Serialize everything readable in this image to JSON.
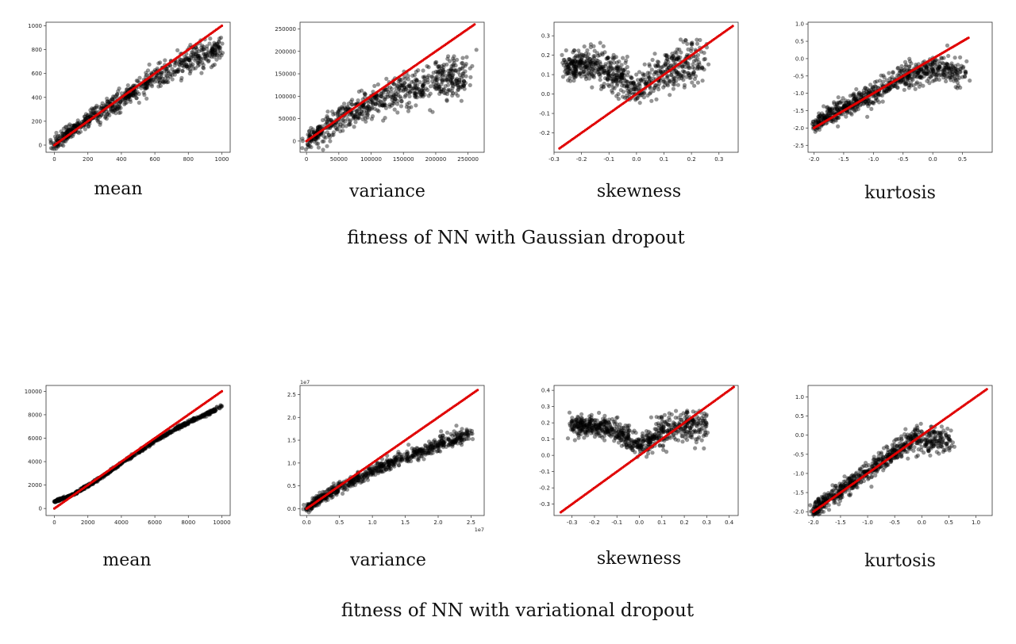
{
  "rows": [
    {
      "caption": "fitness of NN with Gaussian dropout"
    },
    {
      "caption": "fitness of NN with variational dropout"
    }
  ],
  "colors": {
    "points": "#000000",
    "identity_line": "#e00000",
    "axes": "#333333"
  },
  "chart_data": [
    {
      "type": "scatter",
      "caption": "mean",
      "row": 0,
      "xlim": [
        -50,
        1050
      ],
      "ylim": [
        -60,
        1030
      ],
      "xticks": [
        0,
        200,
        400,
        600,
        800,
        1000
      ],
      "xtick_labels": [
        "0",
        "200",
        "400",
        "600",
        "800",
        "1000"
      ],
      "yticks": [
        0,
        200,
        400,
        600,
        800,
        1000
      ],
      "ytick_labels": [
        "0",
        "200",
        "400",
        "600",
        "800",
        "1000"
      ],
      "identity_range": [
        0,
        1000
      ],
      "cloud": [
        [
          0,
          0
        ],
        [
          100,
          120
        ],
        [
          200,
          210
        ],
        [
          300,
          295
        ],
        [
          400,
          385
        ],
        [
          500,
          470
        ],
        [
          600,
          560
        ],
        [
          700,
          640
        ],
        [
          800,
          710
        ],
        [
          900,
          760
        ],
        [
          1000,
          800
        ]
      ],
      "cloud_spread": 55
    },
    {
      "type": "scatter",
      "caption": "variance",
      "row": 0,
      "xlim": [
        -10000,
        275000
      ],
      "ylim": [
        -25000,
        265000
      ],
      "xticks": [
        0,
        50000,
        100000,
        150000,
        200000,
        250000
      ],
      "xtick_labels": [
        "0",
        "50000",
        "100000",
        "150000",
        "200000",
        "250000"
      ],
      "yticks": [
        0,
        50000,
        100000,
        150000,
        200000,
        250000
      ],
      "ytick_labels": [
        "0",
        "50000",
        "100000",
        "150000",
        "200000",
        "250000"
      ],
      "identity_range": [
        0,
        260000
      ],
      "cloud": [
        [
          0,
          0
        ],
        [
          25000,
          25000
        ],
        [
          50000,
          48000
        ],
        [
          75000,
          68000
        ],
        [
          100000,
          85000
        ],
        [
          125000,
          100000
        ],
        [
          150000,
          112000
        ],
        [
          175000,
          122000
        ],
        [
          200000,
          132000
        ],
        [
          225000,
          140000
        ],
        [
          250000,
          145000
        ]
      ],
      "cloud_spread": 22000
    },
    {
      "type": "scatter",
      "caption": "skewness",
      "row": 0,
      "xlim": [
        -0.3,
        0.37
      ],
      "ylim": [
        -0.3,
        0.37
      ],
      "xticks": [
        -0.3,
        -0.2,
        -0.1,
        0.0,
        0.1,
        0.2,
        0.3
      ],
      "xtick_labels": [
        "-0.3",
        "-0.2",
        "-0.1",
        "0.0",
        "0.1",
        "0.2",
        "0.3"
      ],
      "yticks": [
        -0.2,
        -0.1,
        0.0,
        0.1,
        0.2,
        0.3
      ],
      "ytick_labels": [
        "-0.2",
        "-0.1",
        "0.0",
        "0.1",
        "0.2",
        "0.3"
      ],
      "identity_range": [
        -0.28,
        0.35
      ],
      "cloud": [
        [
          -0.25,
          0.14
        ],
        [
          -0.2,
          0.15
        ],
        [
          -0.15,
          0.14
        ],
        [
          -0.1,
          0.12
        ],
        [
          -0.05,
          0.08
        ],
        [
          0.0,
          0.02
        ],
        [
          0.05,
          0.08
        ],
        [
          0.1,
          0.12
        ],
        [
          0.15,
          0.15
        ],
        [
          0.2,
          0.16
        ],
        [
          0.25,
          0.16
        ]
      ],
      "cloud_spread": 0.06
    },
    {
      "type": "scatter",
      "caption": "kurtosis",
      "row": 0,
      "xlim": [
        -2.1,
        1.0
      ],
      "ylim": [
        -2.7,
        1.05
      ],
      "xticks": [
        -2.0,
        -1.5,
        -1.0,
        -0.5,
        0.0,
        0.5
      ],
      "xtick_labels": [
        "-2.0",
        "-1.5",
        "-1.0",
        "-0.5",
        "0.0",
        "0.5"
      ],
      "yticks": [
        -2.5,
        -2.0,
        -1.5,
        -1.0,
        -0.5,
        0.0,
        0.5,
        1.0
      ],
      "ytick_labels": [
        "-2.5",
        "-2.0",
        "-1.5",
        "-1.0",
        "-0.5",
        "0.0",
        "0.5",
        "1.0"
      ],
      "identity_range": [
        -2.0,
        0.6
      ],
      "cloud": [
        [
          -2.0,
          -1.95
        ],
        [
          -1.8,
          -1.7
        ],
        [
          -1.5,
          -1.45
        ],
        [
          -1.2,
          -1.15
        ],
        [
          -1.0,
          -1.0
        ],
        [
          -0.8,
          -0.8
        ],
        [
          -0.5,
          -0.55
        ],
        [
          -0.3,
          -0.4
        ],
        [
          0.0,
          -0.3
        ],
        [
          0.3,
          -0.3
        ],
        [
          0.55,
          -0.35
        ]
      ],
      "cloud_spread": 0.22
    },
    {
      "type": "scatter",
      "caption": "mean",
      "row": 1,
      "xlim": [
        -500,
        10500
      ],
      "ylim": [
        -600,
        10500
      ],
      "xticks": [
        0,
        2000,
        4000,
        6000,
        8000,
        10000
      ],
      "xtick_labels": [
        "0",
        "2000",
        "4000",
        "6000",
        "8000",
        "10000"
      ],
      "yticks": [
        0,
        2000,
        4000,
        6000,
        8000,
        10000
      ],
      "ytick_labels": [
        "0",
        "2000",
        "4000",
        "6000",
        "8000",
        "10000"
      ],
      "identity_range": [
        0,
        10000
      ],
      "cloud": [
        [
          0,
          600
        ],
        [
          1000,
          1100
        ],
        [
          2000,
          1950
        ],
        [
          3000,
          2850
        ],
        [
          4000,
          3850
        ],
        [
          5000,
          4800
        ],
        [
          6000,
          5750
        ],
        [
          7000,
          6600
        ],
        [
          8000,
          7350
        ],
        [
          9000,
          8000
        ],
        [
          10000,
          8700
        ]
      ],
      "cloud_spread": 80
    },
    {
      "type": "scatter",
      "caption": "variance",
      "row": 1,
      "offset_label": "1e7",
      "xlim": [
        -0.1,
        2.7
      ],
      "ylim": [
        -0.15,
        2.7
      ],
      "xticks": [
        0.0,
        0.5,
        1.0,
        1.5,
        2.0,
        2.5
      ],
      "xtick_labels": [
        "0.0",
        "0.5",
        "1.0",
        "1.5",
        "2.0",
        "2.5"
      ],
      "yticks": [
        0.0,
        0.5,
        1.0,
        1.5,
        2.0,
        2.5
      ],
      "ytick_labels": [
        "0.0",
        "0.5",
        "1.0",
        "1.5",
        "2.0",
        "2.5"
      ],
      "identity_range": [
        0,
        2.6
      ],
      "cloud": [
        [
          0,
          0
        ],
        [
          0.25,
          0.25
        ],
        [
          0.5,
          0.45
        ],
        [
          0.75,
          0.65
        ],
        [
          1.0,
          0.82
        ],
        [
          1.25,
          0.98
        ],
        [
          1.5,
          1.12
        ],
        [
          1.75,
          1.27
        ],
        [
          2.0,
          1.4
        ],
        [
          2.25,
          1.52
        ],
        [
          2.5,
          1.65
        ]
      ],
      "cloud_spread": 0.09
    },
    {
      "type": "scatter",
      "caption": "skewness",
      "row": 1,
      "xlim": [
        -0.38,
        0.44
      ],
      "ylim": [
        -0.37,
        0.43
      ],
      "xticks": [
        -0.3,
        -0.2,
        -0.1,
        0.0,
        0.1,
        0.2,
        0.3,
        0.4
      ],
      "xtick_labels": [
        "-0.3",
        "-0.2",
        "-0.1",
        "0.0",
        "0.1",
        "0.2",
        "0.3",
        "0.4"
      ],
      "yticks": [
        -0.3,
        -0.2,
        -0.1,
        0.0,
        0.1,
        0.2,
        0.3,
        0.4
      ],
      "ytick_labels": [
        "-0.3",
        "-0.2",
        "-0.1",
        "0.0",
        "0.1",
        "0.2",
        "0.3",
        "0.4"
      ],
      "identity_range": [
        -0.35,
        0.42
      ],
      "cloud": [
        [
          -0.3,
          0.18
        ],
        [
          -0.2,
          0.18
        ],
        [
          -0.1,
          0.15
        ],
        [
          -0.05,
          0.1
        ],
        [
          0.0,
          0.04
        ],
        [
          0.05,
          0.1
        ],
        [
          0.1,
          0.15
        ],
        [
          0.2,
          0.18
        ],
        [
          0.3,
          0.18
        ]
      ],
      "cloud_spread": 0.05
    },
    {
      "type": "scatter",
      "caption": "kurtosis",
      "row": 1,
      "xlim": [
        -2.1,
        1.3
      ],
      "ylim": [
        -2.1,
        1.3
      ],
      "xticks": [
        -2.0,
        -1.5,
        -1.0,
        -0.5,
        0.0,
        0.5,
        1.0
      ],
      "xtick_labels": [
        "-2.0",
        "-1.5",
        "-1.0",
        "-0.5",
        "0.0",
        "0.5",
        "1.0"
      ],
      "yticks": [
        -2.0,
        -1.5,
        -1.0,
        -0.5,
        0.0,
        0.5,
        1.0
      ],
      "ytick_labels": [
        "-2.0",
        "-1.5",
        "-1.0",
        "-0.5",
        "0.0",
        "0.5",
        "1.0"
      ],
      "identity_range": [
        -2.0,
        1.2
      ],
      "cloud": [
        [
          -2.0,
          -2.0
        ],
        [
          -1.8,
          -1.75
        ],
        [
          -1.5,
          -1.45
        ],
        [
          -1.2,
          -1.15
        ],
        [
          -1.0,
          -0.95
        ],
        [
          -0.8,
          -0.75
        ],
        [
          -0.5,
          -0.45
        ],
        [
          -0.3,
          -0.2
        ],
        [
          0.0,
          -0.12
        ],
        [
          0.3,
          -0.12
        ],
        [
          0.55,
          -0.12
        ]
      ],
      "cloud_spread": 0.18
    }
  ]
}
